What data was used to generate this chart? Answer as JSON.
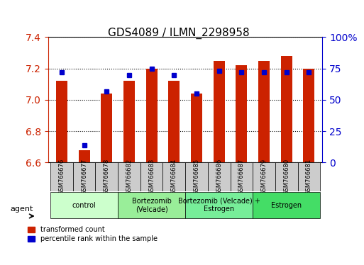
{
  "title": "GDS4089 / ILMN_2298958",
  "samples": [
    "GSM766676",
    "GSM766677",
    "GSM766678",
    "GSM766682",
    "GSM766683",
    "GSM766684",
    "GSM766685",
    "GSM766686",
    "GSM766687",
    "GSM766679",
    "GSM766680",
    "GSM766681"
  ],
  "red_values": [
    7.12,
    6.68,
    7.04,
    7.12,
    7.2,
    7.12,
    7.04,
    7.25,
    7.22,
    7.25,
    7.28,
    7.2
  ],
  "blue_values": [
    72,
    14,
    57,
    70,
    75,
    70,
    55,
    73,
    72,
    72,
    72,
    72
  ],
  "ylim_left": [
    6.6,
    7.4
  ],
  "ylim_right": [
    0,
    100
  ],
  "yticks_left": [
    6.6,
    6.8,
    7.0,
    7.2,
    7.4
  ],
  "yticks_right": [
    0,
    25,
    50,
    75,
    100
  ],
  "ytick_labels_right": [
    "0",
    "25",
    "50",
    "75",
    "100%"
  ],
  "bar_color": "#cc2200",
  "dot_color": "#0000cc",
  "grid_color": "black",
  "bg_color": "#ffffff",
  "tick_area_color": "#cccccc",
  "groups": [
    {
      "label": "control",
      "start": 0,
      "end": 2,
      "color": "#ccffcc"
    },
    {
      "label": "Bortezomib\n(Velcade)",
      "start": 3,
      "end": 5,
      "color": "#99ff99"
    },
    {
      "label": "Bortezomib (Velcade) +\nEstrogen",
      "start": 6,
      "end": 8,
      "color": "#66ff99"
    },
    {
      "label": "Estrogen",
      "start": 9,
      "end": 11,
      "color": "#33ff66"
    }
  ],
  "legend_labels": [
    "transformed count",
    "percentile rank within the sample"
  ],
  "agent_label": "agent",
  "xlabel_color": "#cc2200",
  "ylabel_right_color": "#0000cc",
  "base_value": 6.6
}
